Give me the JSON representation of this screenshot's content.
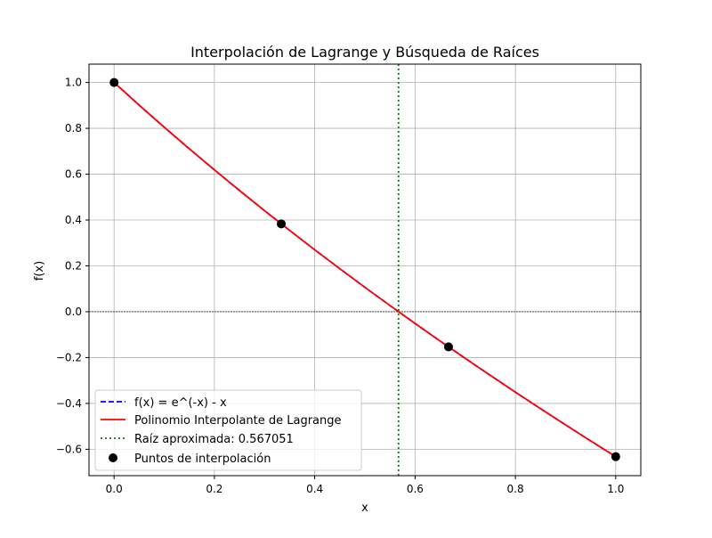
{
  "chart_data": {
    "type": "line",
    "title": "Interpolación de Lagrange y Búsqueda de Raíces",
    "xlabel": "x",
    "ylabel": "f(x)",
    "xlim": [
      -0.05,
      1.05
    ],
    "ylim": [
      -0.715,
      1.08
    ],
    "xticks": [
      0.0,
      0.2,
      0.4,
      0.6,
      0.8,
      1.0
    ],
    "xtick_labels": [
      "0.0",
      "0.2",
      "0.4",
      "0.6",
      "0.8",
      "1.0"
    ],
    "yticks": [
      1.0,
      0.8,
      0.6,
      0.4,
      0.2,
      0.0,
      -0.2,
      -0.4,
      -0.6
    ],
    "ytick_labels": [
      "1.0",
      "0.8",
      "0.6",
      "0.4",
      "0.2",
      "0.0",
      "−0.2",
      "−0.4",
      "−0.6"
    ],
    "grid": true,
    "legend_position": "lower-left",
    "series": [
      {
        "name": "f(x) = e^(-x) - x",
        "kind": "line",
        "style": "dashed",
        "color": "#0000ff",
        "x": [
          0.0,
          0.05,
          0.1,
          0.15,
          0.2,
          0.25,
          0.3,
          0.35,
          0.4,
          0.45,
          0.5,
          0.55,
          0.6,
          0.65,
          0.7,
          0.75,
          0.8,
          0.85,
          0.9,
          0.95,
          1.0
        ],
        "y": [
          1.0,
          0.9012,
          0.8048,
          0.7107,
          0.6187,
          0.5288,
          0.4408,
          0.3547,
          0.2703,
          0.1876,
          0.1065,
          0.0269,
          -0.0512,
          -0.128,
          -0.2034,
          -0.2776,
          -0.3507,
          -0.4226,
          -0.4934,
          -0.5633,
          -0.6321
        ]
      },
      {
        "name": "Polinomio Interpolante de Lagrange",
        "kind": "line",
        "style": "solid",
        "color": "#ff0000",
        "x": [
          0.0,
          0.05,
          0.1,
          0.15,
          0.2,
          0.25,
          0.3,
          0.35,
          0.4,
          0.45,
          0.5,
          0.55,
          0.6,
          0.65,
          0.7,
          0.75,
          0.8,
          0.85,
          0.9,
          0.95,
          1.0
        ],
        "y": [
          1.0,
          0.9012,
          0.8048,
          0.7107,
          0.6187,
          0.5288,
          0.4408,
          0.3547,
          0.2703,
          0.1876,
          0.1065,
          0.0269,
          -0.0512,
          -0.128,
          -0.2034,
          -0.2776,
          -0.3507,
          -0.4226,
          -0.4934,
          -0.5633,
          -0.6321
        ]
      },
      {
        "name": "Raíz aproximada: 0.567051",
        "kind": "vline",
        "style": "dotted",
        "color": "#008000",
        "x": 0.567051
      },
      {
        "name": "Puntos de interpolación",
        "kind": "scatter",
        "color": "#000000",
        "x": [
          0.0,
          0.3333,
          0.6667,
          1.0
        ],
        "y": [
          1.0,
          0.3832,
          -0.1532,
          -0.6321
        ]
      }
    ],
    "reference_line": {
      "y": 0.0,
      "color": "#000000"
    }
  }
}
